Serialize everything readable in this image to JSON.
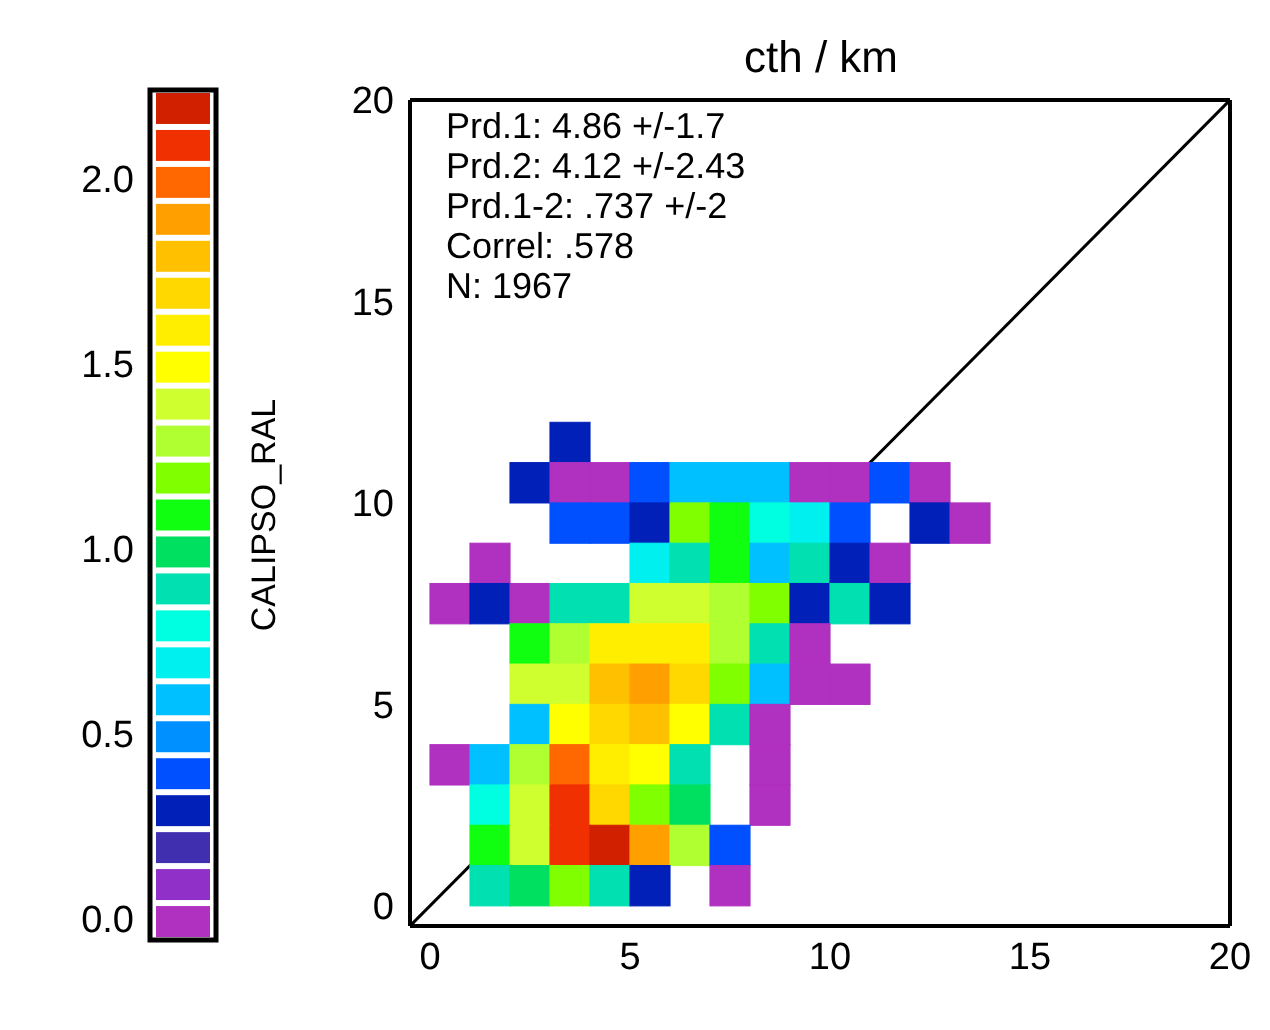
{
  "chart_data": {
    "type": "scatter",
    "title": "cth  /  km",
    "clabel": "CALIPSO_RAL",
    "annotations": [
      "Prd.1: 4.86 +/-1.7",
      "Prd.2: 4.12 +/-2.43",
      "Prd.1-2: .737 +/-2",
      "Correl: .578",
      "N: 1967"
    ],
    "xlim": [
      -0.5,
      20
    ],
    "ylim": [
      -0.5,
      20
    ],
    "xticks": [
      0,
      5,
      10,
      15,
      20
    ],
    "yticks": [
      0,
      5,
      10,
      15,
      20
    ],
    "clim": [
      -0.05,
      2.25
    ],
    "cticks": [
      {
        "value": 0,
        "label": "0.0"
      },
      {
        "value": 0.5,
        "label": "0.5"
      },
      {
        "value": 1,
        "label": "1.0"
      },
      {
        "value": 1.5,
        "label": "1.5"
      },
      {
        "value": 2,
        "label": "2.0"
      }
    ],
    "colors": [
      "#b030c0",
      "#9030c8",
      "#4030b0",
      "#0020b8",
      "#0050ff",
      "#0090ff",
      "#00c0ff",
      "#00f0f0",
      "#00ffe0",
      "#00e0b0",
      "#00e060",
      "#10ff10",
      "#80ff00",
      "#b0ff30",
      "#d0ff30",
      "#ffff00",
      "#ffee00",
      "#ffd800",
      "#ffc000",
      "#ffa000",
      "#ff6800",
      "#f03000",
      "#d02000"
    ],
    "grid": false,
    "legend": false,
    "series": [
      {
        "type": "scatter",
        "marker": "square",
        "colors": [
          "#0020b8",
          "#0020b8",
          "#b030c0",
          "#b030c0",
          "#0050ff",
          "#00c0ff",
          "#00c0ff",
          "#00c0ff",
          "#b030c0",
          "#b030c0",
          "#0050ff",
          "#b030c0",
          "#0050ff",
          "#0050ff",
          "#0020b8",
          "#80ff00",
          "#10ff10",
          "#00ffe0",
          "#00f0f0",
          "#0050ff",
          "#0020b8",
          "#b030c0",
          "#b030c0",
          "#00f0f0",
          "#00e0b0",
          "#10ff10",
          "#00c0ff",
          "#00e0b0",
          "#0020b8",
          "#b030c0",
          "#b030c0",
          "#0020b8",
          "#b030c0",
          "#00e0b0",
          "#00e0b0",
          "#d0ff30",
          "#d0ff30",
          "#b0ff30",
          "#80ff00",
          "#0020b8",
          "#00e0b0",
          "#0020b8",
          "#10ff10",
          "#b0ff30",
          "#ffee00",
          "#ffee00",
          "#ffee00",
          "#b0ff30",
          "#00e0b0",
          "#b030c0",
          "#d0ff30",
          "#d0ff30",
          "#ffc000",
          "#ffa000",
          "#ffd800",
          "#80ff00",
          "#00c0ff",
          "#b030c0",
          "#b030c0",
          "#00c0ff",
          "#ffff00",
          "#ffd800",
          "#ffc000",
          "#ffff00",
          "#00e0b0",
          "#b030c0",
          "#b030c0",
          "#00c0ff",
          "#b0ff30",
          "#ff6800",
          "#ffee00",
          "#ffff00",
          "#00e0b0",
          "#b030c0",
          "#00ffe0",
          "#d0ff30",
          "#f03000",
          "#ffd800",
          "#80ff00",
          "#00e060",
          "#b030c0",
          "#10ff10",
          "#d0ff30",
          "#f03000",
          "#d02000",
          "#ffa000",
          "#b0ff30",
          "#0050ff",
          "#00e0b0",
          "#00e060",
          "#80ff00",
          "#00e0b0",
          "#0020b8",
          "#b030c0"
        ],
        "x": [
          3.5,
          2.5,
          3.5,
          4.5,
          5.5,
          6.5,
          7.5,
          8.5,
          9.5,
          10.5,
          11.5,
          12.5,
          3.5,
          4.5,
          5.5,
          6.5,
          7.5,
          8.5,
          9.5,
          10.5,
          12.5,
          13.5,
          1.5,
          5.5,
          6.5,
          7.5,
          8.5,
          9.5,
          10.5,
          11.5,
          0.5,
          1.5,
          2.5,
          3.5,
          4.5,
          5.5,
          6.5,
          7.5,
          8.5,
          9.5,
          10.5,
          11.5,
          2.5,
          3.5,
          4.5,
          5.5,
          6.5,
          7.5,
          8.5,
          9.5,
          2.5,
          3.5,
          4.5,
          5.5,
          6.5,
          7.5,
          8.5,
          9.5,
          10.5,
          2.5,
          3.5,
          4.5,
          5.5,
          6.5,
          7.5,
          8.5,
          0.5,
          1.5,
          2.5,
          3.5,
          4.5,
          5.5,
          6.5,
          8.5,
          1.5,
          2.5,
          3.5,
          4.5,
          5.5,
          6.5,
          8.5,
          1.5,
          2.5,
          3.5,
          4.5,
          5.5,
          6.5,
          7.5,
          1.5,
          2.5,
          3.5,
          4.5,
          5.5,
          7.5
        ],
        "values": [
          11.5,
          10.5,
          10.5,
          10.5,
          10.5,
          10.5,
          10.5,
          10.5,
          10.5,
          10.5,
          10.5,
          10.5,
          9.5,
          9.5,
          9.5,
          9.5,
          9.5,
          9.5,
          9.5,
          9.5,
          9.5,
          9.5,
          8.5,
          8.5,
          8.5,
          8.5,
          8.5,
          8.5,
          8.5,
          8.5,
          7.5,
          7.5,
          7.5,
          7.5,
          7.5,
          7.5,
          7.5,
          7.5,
          7.5,
          7.5,
          7.5,
          7.5,
          6.5,
          6.5,
          6.5,
          6.5,
          6.5,
          6.5,
          6.5,
          6.5,
          5.5,
          5.5,
          5.5,
          5.5,
          5.5,
          5.5,
          5.5,
          5.5,
          5.5,
          4.5,
          4.5,
          4.5,
          4.5,
          4.5,
          4.5,
          4.5,
          3.5,
          3.5,
          3.5,
          3.5,
          3.5,
          3.5,
          3.5,
          3.5,
          2.5,
          2.5,
          2.5,
          2.5,
          2.5,
          2.5,
          2.5,
          1.5,
          1.5,
          1.5,
          1.5,
          1.5,
          1.5,
          1.5,
          0.5,
          0.5,
          0.5,
          0.5,
          0.5,
          0.5
        ],
        "cvalues": [
          0.3,
          0.3,
          0.0,
          0.0,
          0.4,
          0.6,
          0.6,
          0.6,
          0.0,
          0.0,
          0.4,
          0.0,
          0.4,
          0.4,
          0.3,
          1.2,
          1.1,
          0.8,
          0.7,
          0.4,
          0.3,
          0.0,
          0.0,
          0.7,
          0.9,
          1.1,
          0.6,
          0.9,
          0.3,
          0.0,
          0.0,
          0.3,
          0.0,
          0.9,
          0.9,
          1.4,
          1.4,
          1.3,
          1.2,
          0.3,
          0.9,
          0.3,
          1.1,
          1.3,
          1.6,
          1.6,
          1.6,
          1.3,
          0.9,
          0.0,
          1.4,
          1.4,
          1.8,
          1.9,
          1.7,
          1.2,
          0.6,
          0.0,
          0.0,
          0.6,
          1.5,
          1.7,
          1.8,
          1.5,
          0.9,
          0.0,
          0.0,
          0.6,
          1.3,
          2.0,
          1.6,
          1.5,
          0.9,
          0.0,
          0.8,
          1.4,
          2.1,
          1.7,
          1.2,
          1.0,
          0.0,
          1.1,
          1.4,
          2.1,
          2.2,
          1.9,
          1.3,
          0.4,
          0.9,
          1.0,
          1.2,
          0.9,
          0.3,
          0.0
        ]
      },
      {
        "type": "line",
        "color": "#000000",
        "line_style": "solid",
        "x": [
          -0.5,
          20
        ],
        "values": [
          -0.5,
          20
        ]
      }
    ]
  }
}
